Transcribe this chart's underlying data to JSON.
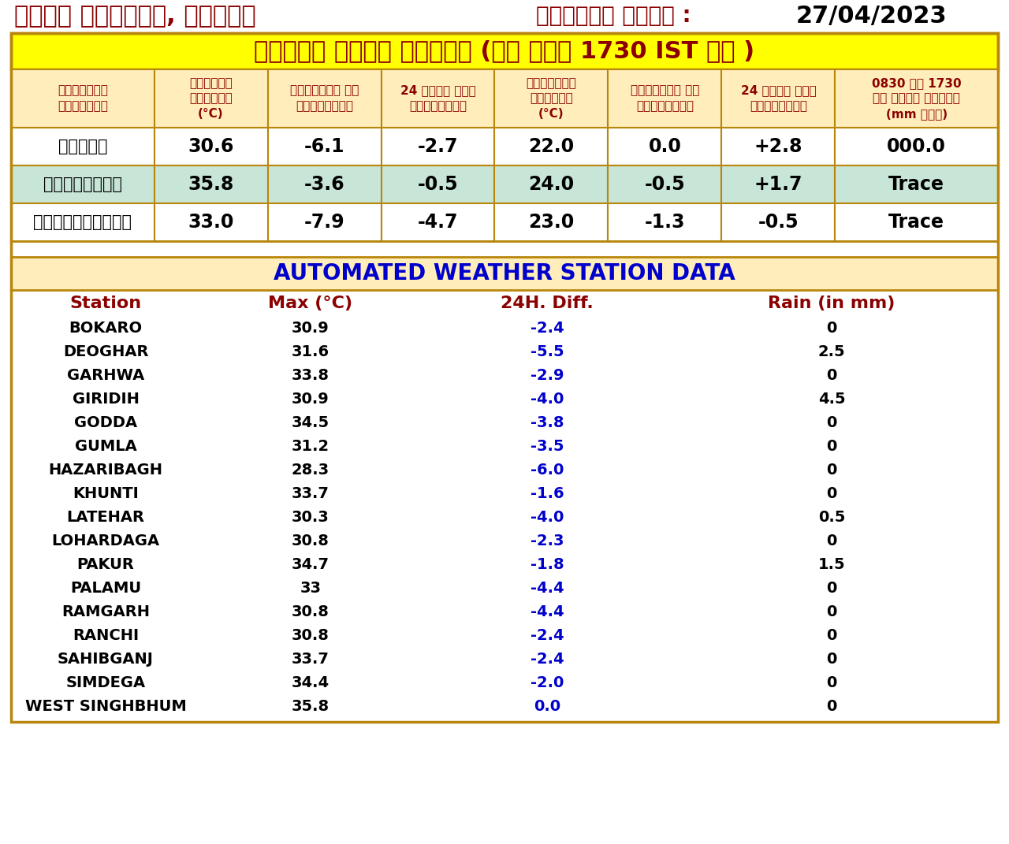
{
  "header_left": "मौसम केंद्र, रांची",
  "header_right_label": "निर्गत तिथि :",
  "header_right_date": "27/04/2023",
  "main_title": "दैनिक मौसम विवरण (आज शाम 1730 IST तक )",
  "col_headers": [
    "विभागीय\nवेधशाला",
    "अधिकतम\nतापमान\n(°C)",
    "सामान्य से\nपरिवर्तन",
    "24 घंटे में\nपरिवर्तन",
    "न्यूनतम\nतापमान\n(°C)",
    "सामान्य से\nपरिवर्तन",
    "24 घंटे में\nपरिवर्तन",
    "0830 से 1730\nतक दर्ज वर्षा\n(mm में)"
  ],
  "table1_data": [
    [
      "राँची",
      "30.6",
      "-6.1",
      "-2.7",
      "22.0",
      "0.0",
      "+2.8",
      "000.0"
    ],
    [
      "जमशेदपुर",
      "35.8",
      "-3.6",
      "-0.5",
      "24.0",
      "-0.5",
      "+1.7",
      "Trace"
    ],
    [
      "डाल्टेनगंज",
      "33.0",
      "-7.9",
      "-4.7",
      "23.0",
      "-1.3",
      "-0.5",
      "Trace"
    ]
  ],
  "row_colors": [
    "#ffffff",
    "#c8e6d8",
    "#ffffff"
  ],
  "aws_title": "AUTOMATED WEATHER STATION DATA",
  "aws_col_headers": [
    "Station",
    "Max (°C)",
    "24H. Diff.",
    "Rain (in mm)"
  ],
  "aws_data": [
    [
      "BOKARO",
      "30.9",
      "-2.4",
      "0"
    ],
    [
      "DEOGHAR",
      "31.6",
      "-5.5",
      "2.5"
    ],
    [
      "GARHWA",
      "33.8",
      "-2.9",
      "0"
    ],
    [
      "GIRIDIH",
      "30.9",
      "-4.0",
      "4.5"
    ],
    [
      "GODDA",
      "34.5",
      "-3.8",
      "0"
    ],
    [
      "GUMLA",
      "31.2",
      "-3.5",
      "0"
    ],
    [
      "HAZARIBAGH",
      "28.3",
      "-6.0",
      "0"
    ],
    [
      "KHUNTI",
      "33.7",
      "-1.6",
      "0"
    ],
    [
      "LATEHAR",
      "30.3",
      "-4.0",
      "0.5"
    ],
    [
      "LOHARDAGA",
      "30.8",
      "-2.3",
      "0"
    ],
    [
      "PAKUR",
      "34.7",
      "-1.8",
      "1.5"
    ],
    [
      "PALAMU",
      "33",
      "-4.4",
      "0"
    ],
    [
      "RAMGARH",
      "30.8",
      "-4.4",
      "0"
    ],
    [
      "RANCHI",
      "30.8",
      "-2.4",
      "0"
    ],
    [
      "SAHIBGANJ",
      "33.7",
      "-2.4",
      "0"
    ],
    [
      "SIMDEGA",
      "34.4",
      "-2.0",
      "0"
    ],
    [
      "WEST SINGHBHUM",
      "35.8",
      "0.0",
      "0"
    ]
  ],
  "bg_color": "#ffffff",
  "header_bg": "#ffff00",
  "col_header_bg": "#ffeebb",
  "aws_header_bg": "#ffeebb",
  "border_color": "#b8860b",
  "dark_red": "#8b0000",
  "blue": "#0000cc",
  "black": "#000000"
}
